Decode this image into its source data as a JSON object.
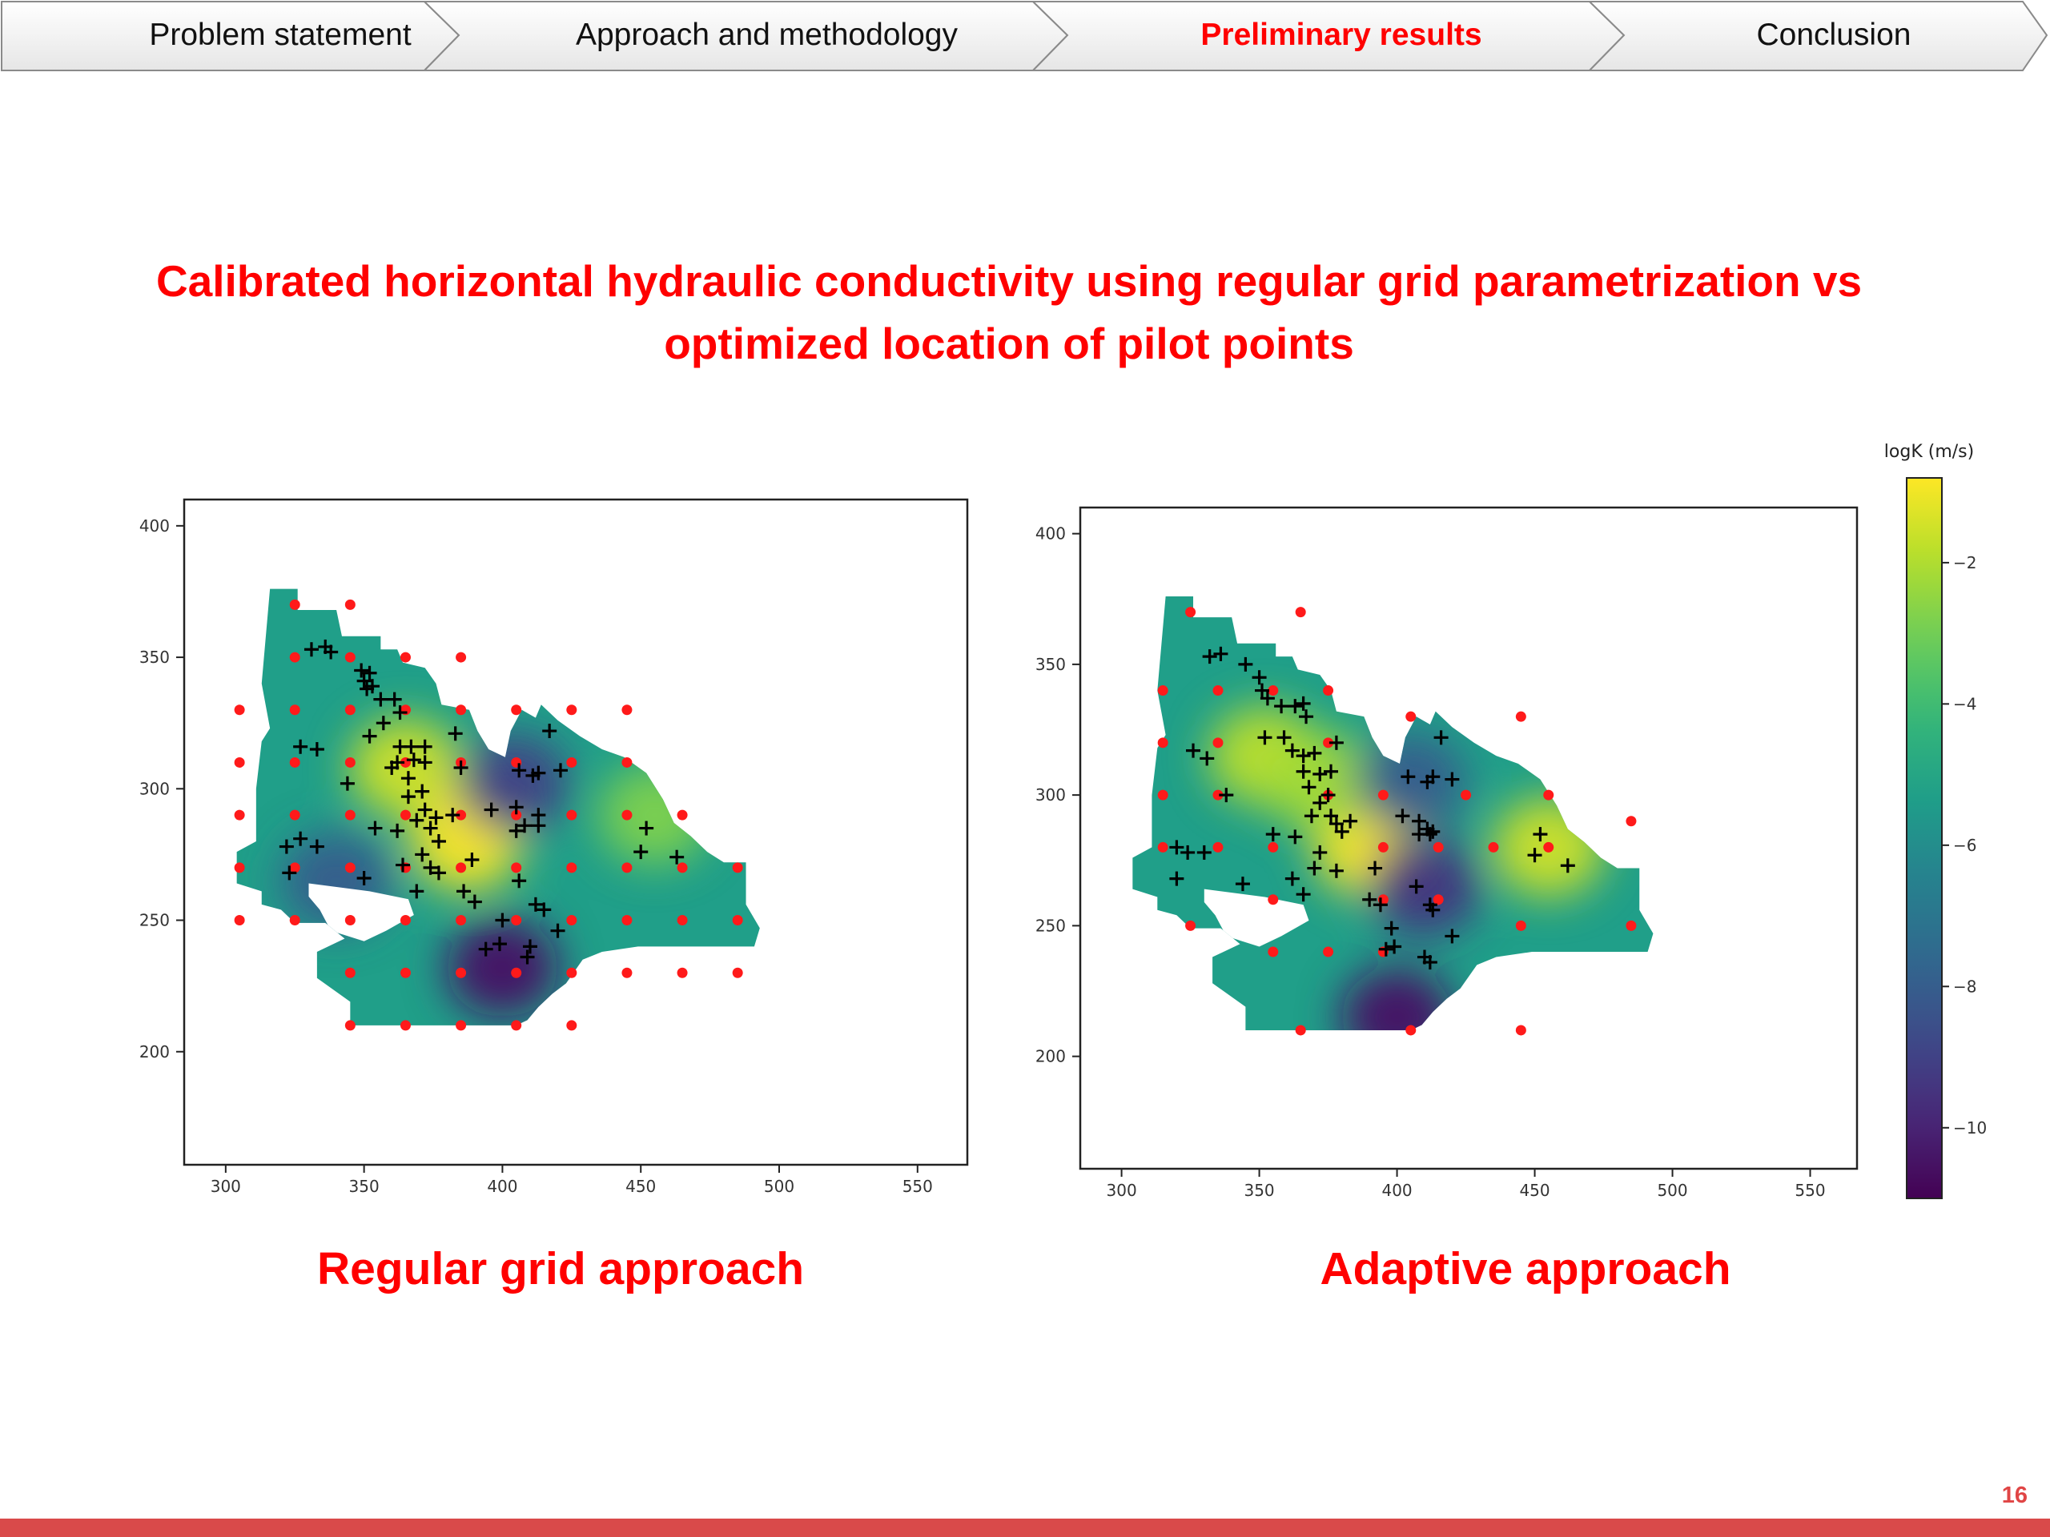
{
  "nav": {
    "items": [
      {
        "label": "Problem statement",
        "active": false
      },
      {
        "label": "Approach and methodology",
        "active": false
      },
      {
        "label": "Preliminary results",
        "active": true
      },
      {
        "label": "Conclusion",
        "active": false
      }
    ]
  },
  "slide": {
    "title_line1": "Calibrated horizontal hydraulic conductivity using regular grid parametrization vs",
    "title_line2": "optimized location of pilot points",
    "caption_left": "Regular grid approach",
    "caption_right": "Adaptive approach",
    "page_number": "16",
    "accent_color": "#ff0000"
  },
  "chart_data": [
    {
      "type": "heatmap",
      "title": "",
      "xlabel": "",
      "ylabel": "",
      "xlim": [
        285,
        568
      ],
      "ylim": [
        157,
        410
      ],
      "xticks": [
        300,
        350,
        400,
        450,
        500,
        550
      ],
      "yticks": [
        200,
        250,
        300,
        350,
        400
      ],
      "colorscale": "viridis",
      "hotspots": [
        {
          "x": 365,
          "y": 308,
          "logK": -1.5
        },
        {
          "x": 387,
          "y": 280,
          "logK": -0.8
        },
        {
          "x": 455,
          "y": 290,
          "logK": -2.8
        },
        {
          "x": 400,
          "y": 232,
          "logK": -10.5
        },
        {
          "x": 404,
          "y": 302,
          "logK": -9.0
        },
        {
          "x": 340,
          "y": 265,
          "logK": -8.0
        }
      ],
      "pilot_points_red": [
        [
          325,
          370
        ],
        [
          345,
          370
        ],
        [
          325,
          350
        ],
        [
          345,
          350
        ],
        [
          365,
          350
        ],
        [
          385,
          350
        ],
        [
          305,
          330
        ],
        [
          325,
          330
        ],
        [
          345,
          330
        ],
        [
          365,
          330
        ],
        [
          385,
          330
        ],
        [
          405,
          330
        ],
        [
          425,
          330
        ],
        [
          445,
          330
        ],
        [
          305,
          310
        ],
        [
          325,
          310
        ],
        [
          345,
          310
        ],
        [
          365,
          310
        ],
        [
          385,
          310
        ],
        [
          405,
          310
        ],
        [
          425,
          310
        ],
        [
          445,
          310
        ],
        [
          305,
          290
        ],
        [
          325,
          290
        ],
        [
          345,
          290
        ],
        [
          365,
          290
        ],
        [
          385,
          290
        ],
        [
          405,
          290
        ],
        [
          425,
          290
        ],
        [
          445,
          290
        ],
        [
          465,
          290
        ],
        [
          305,
          270
        ],
        [
          325,
          270
        ],
        [
          345,
          270
        ],
        [
          365,
          270
        ],
        [
          385,
          270
        ],
        [
          405,
          270
        ],
        [
          425,
          270
        ],
        [
          445,
          270
        ],
        [
          465,
          270
        ],
        [
          485,
          270
        ],
        [
          305,
          250
        ],
        [
          325,
          250
        ],
        [
          345,
          250
        ],
        [
          365,
          250
        ],
        [
          385,
          250
        ],
        [
          405,
          250
        ],
        [
          425,
          250
        ],
        [
          445,
          250
        ],
        [
          465,
          250
        ],
        [
          485,
          250
        ],
        [
          345,
          230
        ],
        [
          365,
          230
        ],
        [
          385,
          230
        ],
        [
          405,
          230
        ],
        [
          425,
          230
        ],
        [
          445,
          230
        ],
        [
          465,
          230
        ],
        [
          485,
          230
        ],
        [
          345,
          210
        ],
        [
          365,
          210
        ],
        [
          385,
          210
        ],
        [
          405,
          210
        ],
        [
          425,
          210
        ]
      ],
      "observation_wells": [
        [
          331,
          353
        ],
        [
          336,
          354
        ],
        [
          338,
          352
        ],
        [
          349,
          345
        ],
        [
          350,
          341
        ],
        [
          351,
          338
        ],
        [
          352,
          344
        ],
        [
          353,
          339
        ],
        [
          356,
          334
        ],
        [
          361,
          334
        ],
        [
          363,
          329
        ],
        [
          357,
          325
        ],
        [
          352,
          320
        ],
        [
          363,
          316
        ],
        [
          367,
          316
        ],
        [
          372,
          316
        ],
        [
          368,
          311
        ],
        [
          362,
          310
        ],
        [
          372,
          310
        ],
        [
          327,
          316
        ],
        [
          333,
          315
        ],
        [
          344,
          302
        ],
        [
          360,
          308
        ],
        [
          366,
          304
        ],
        [
          371,
          299
        ],
        [
          366,
          297
        ],
        [
          372,
          292
        ],
        [
          369,
          288
        ],
        [
          376,
          289
        ],
        [
          374,
          285
        ],
        [
          382,
          290
        ],
        [
          385,
          308
        ],
        [
          383,
          321
        ],
        [
          354,
          285
        ],
        [
          362,
          284
        ],
        [
          377,
          280
        ],
        [
          371,
          275
        ],
        [
          374,
          270
        ],
        [
          377,
          268
        ],
        [
          364,
          271
        ],
        [
          369,
          261
        ],
        [
          322,
          278
        ],
        [
          327,
          281
        ],
        [
          333,
          278
        ],
        [
          323,
          268
        ],
        [
          350,
          266
        ],
        [
          389,
          273
        ],
        [
          386,
          261
        ],
        [
          390,
          257
        ],
        [
          396,
          292
        ],
        [
          405,
          293
        ],
        [
          408,
          286
        ],
        [
          413,
          286
        ],
        [
          413,
          290
        ],
        [
          406,
          307
        ],
        [
          411,
          305
        ],
        [
          413,
          306
        ],
        [
          421,
          307
        ],
        [
          417,
          322
        ],
        [
          405,
          284
        ],
        [
          406,
          265
        ],
        [
          412,
          256
        ],
        [
          415,
          254
        ],
        [
          400,
          250
        ],
        [
          399,
          241
        ],
        [
          394,
          239
        ],
        [
          410,
          240
        ],
        [
          409,
          236
        ],
        [
          420,
          246
        ],
        [
          452,
          285
        ],
        [
          450,
          276
        ],
        [
          463,
          274
        ]
      ]
    },
    {
      "type": "heatmap",
      "title": "",
      "xlabel": "",
      "ylabel": "",
      "xlim": [
        285,
        567
      ],
      "ylim": [
        157,
        410
      ],
      "xticks": [
        300,
        350,
        400,
        450,
        500,
        550
      ],
      "yticks": [
        200,
        250,
        300,
        350,
        400
      ],
      "colorscale": "viridis",
      "colorbar": {
        "label": "logK (m/s)",
        "min": -11,
        "max": -0.8,
        "ticks": [
          -2,
          -4,
          -6,
          -8,
          -10
        ]
      },
      "hotspots": [
        {
          "x": 352,
          "y": 315,
          "logK": -1.8
        },
        {
          "x": 390,
          "y": 280,
          "logK": -0.7
        },
        {
          "x": 372,
          "y": 305,
          "logK": -2.2
        },
        {
          "x": 455,
          "y": 280,
          "logK": -1.5
        },
        {
          "x": 400,
          "y": 215,
          "logK": -10.5
        },
        {
          "x": 410,
          "y": 265,
          "logK": -9.5
        },
        {
          "x": 405,
          "y": 305,
          "logK": -8.0
        }
      ],
      "pilot_points_red": [
        [
          325,
          370
        ],
        [
          365,
          370
        ],
        [
          315,
          340
        ],
        [
          335,
          340
        ],
        [
          355,
          340
        ],
        [
          375,
          340
        ],
        [
          315,
          320
        ],
        [
          335,
          320
        ],
        [
          375,
          320
        ],
        [
          405,
          330
        ],
        [
          445,
          330
        ],
        [
          315,
          300
        ],
        [
          335,
          300
        ],
        [
          375,
          300
        ],
        [
          395,
          300
        ],
        [
          425,
          300
        ],
        [
          455,
          300
        ],
        [
          315,
          280
        ],
        [
          335,
          280
        ],
        [
          355,
          280
        ],
        [
          395,
          280
        ],
        [
          415,
          280
        ],
        [
          435,
          280
        ],
        [
          455,
          280
        ],
        [
          485,
          290
        ],
        [
          355,
          260
        ],
        [
          395,
          260
        ],
        [
          415,
          260
        ],
        [
          325,
          250
        ],
        [
          355,
          240
        ],
        [
          375,
          240
        ],
        [
          395,
          240
        ],
        [
          445,
          250
        ],
        [
          485,
          250
        ],
        [
          365,
          210
        ],
        [
          405,
          210
        ],
        [
          445,
          210
        ]
      ],
      "observation_wells": [
        [
          332,
          353
        ],
        [
          336,
          354
        ],
        [
          345,
          350
        ],
        [
          350,
          345
        ],
        [
          351,
          340
        ],
        [
          353,
          337
        ],
        [
          358,
          334
        ],
        [
          363,
          334
        ],
        [
          366,
          335
        ],
        [
          367,
          330
        ],
        [
          352,
          322
        ],
        [
          359,
          322
        ],
        [
          362,
          317
        ],
        [
          366,
          315
        ],
        [
          370,
          316
        ],
        [
          378,
          320
        ],
        [
          366,
          309
        ],
        [
          372,
          308
        ],
        [
          376,
          309
        ],
        [
          368,
          303
        ],
        [
          375,
          300
        ],
        [
          372,
          297
        ],
        [
          369,
          292
        ],
        [
          376,
          292
        ],
        [
          378,
          289
        ],
        [
          380,
          286
        ],
        [
          383,
          290
        ],
        [
          326,
          317
        ],
        [
          331,
          314
        ],
        [
          338,
          300
        ],
        [
          355,
          285
        ],
        [
          363,
          284
        ],
        [
          372,
          278
        ],
        [
          370,
          272
        ],
        [
          378,
          271
        ],
        [
          362,
          268
        ],
        [
          366,
          262
        ],
        [
          344,
          266
        ],
        [
          320,
          280
        ],
        [
          324,
          278
        ],
        [
          330,
          278
        ],
        [
          320,
          268
        ],
        [
          392,
          272
        ],
        [
          390,
          260
        ],
        [
          394,
          258
        ],
        [
          402,
          292
        ],
        [
          408,
          290
        ],
        [
          411,
          287
        ],
        [
          413,
          286
        ],
        [
          404,
          307
        ],
        [
          411,
          305
        ],
        [
          413,
          307
        ],
        [
          416,
          322
        ],
        [
          420,
          306
        ],
        [
          408,
          285
        ],
        [
          412,
          285
        ],
        [
          407,
          265
        ],
        [
          412,
          258
        ],
        [
          413,
          256
        ],
        [
          398,
          249
        ],
        [
          396,
          241
        ],
        [
          399,
          242
        ],
        [
          410,
          238
        ],
        [
          412,
          236
        ],
        [
          420,
          246
        ],
        [
          452,
          285
        ],
        [
          450,
          277
        ],
        [
          462,
          273
        ]
      ]
    }
  ]
}
